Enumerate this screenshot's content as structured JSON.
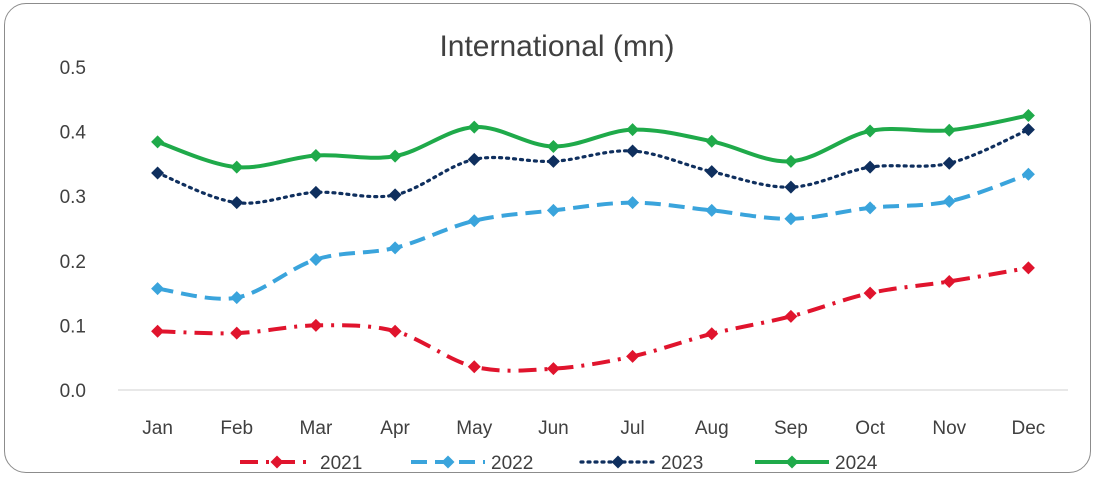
{
  "chart_data": {
    "type": "line",
    "title": "International (mn)",
    "xlabel": "",
    "ylabel": "",
    "categories": [
      "Jan",
      "Feb",
      "Mar",
      "Apr",
      "May",
      "Jun",
      "Jul",
      "Aug",
      "Sep",
      "Oct",
      "Nov",
      "Dec"
    ],
    "yticks": [
      "0.0",
      "0.1",
      "0.2",
      "0.3",
      "0.4",
      "0.5"
    ],
    "ylim": [
      0,
      0.5
    ],
    "grid": false,
    "legend_position": "bottom",
    "series": [
      {
        "name": "2021",
        "color": "#e0142d",
        "dash": "dash-dot",
        "marker": "diamond",
        "values": [
          0.091,
          0.088,
          0.1,
          0.091,
          0.036,
          0.033,
          0.052,
          0.087,
          0.114,
          0.15,
          0.168,
          0.189
        ]
      },
      {
        "name": "2022",
        "color": "#3aa4dc",
        "dash": "dash",
        "marker": "diamond",
        "values": [
          0.157,
          0.143,
          0.202,
          0.22,
          0.262,
          0.278,
          0.29,
          0.278,
          0.265,
          0.282,
          0.292,
          0.334
        ]
      },
      {
        "name": "2023",
        "color": "#0f2f5e",
        "dash": "dot",
        "marker": "diamond",
        "values": [
          0.336,
          0.29,
          0.306,
          0.302,
          0.357,
          0.354,
          0.37,
          0.338,
          0.314,
          0.345,
          0.351,
          0.403
        ]
      },
      {
        "name": "2024",
        "color": "#1faa4a",
        "dash": "solid",
        "marker": "diamond",
        "values": [
          0.384,
          0.345,
          0.363,
          0.362,
          0.407,
          0.377,
          0.403,
          0.385,
          0.354,
          0.401,
          0.402,
          0.425
        ]
      }
    ]
  }
}
